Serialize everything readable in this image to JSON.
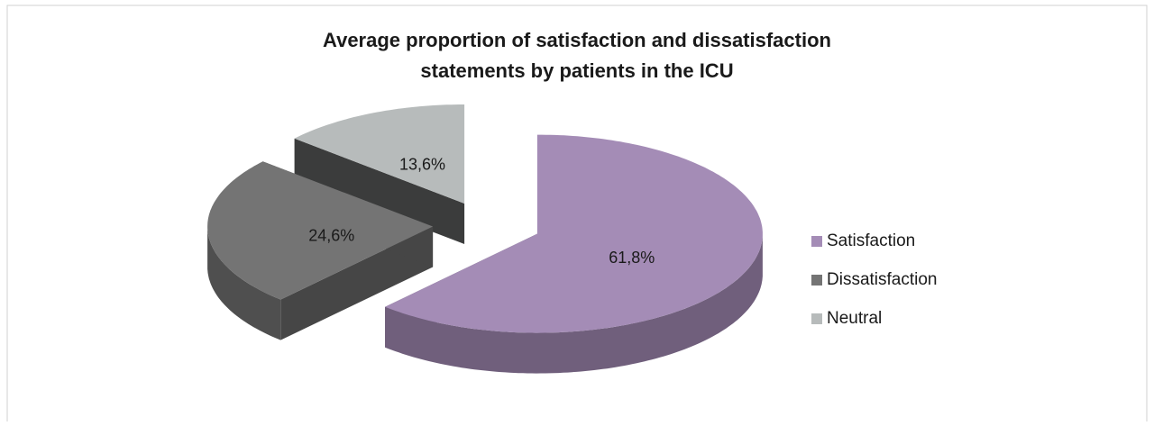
{
  "chart_data": {
    "type": "pie3d",
    "title": "Average proportion of satisfaction and dissatisfaction",
    "subtitle": "statements by patients in the ICU",
    "categories": [
      "Satisfaction",
      "Dissatisfaction",
      "Neutral"
    ],
    "values": [
      61.8,
      24.6,
      13.6
    ],
    "value_labels": [
      "61,8%",
      "24,6%",
      "13,6%"
    ],
    "colors": [
      "#a48cb6",
      "#747474",
      "#b7bbbb"
    ],
    "legend": "right"
  }
}
